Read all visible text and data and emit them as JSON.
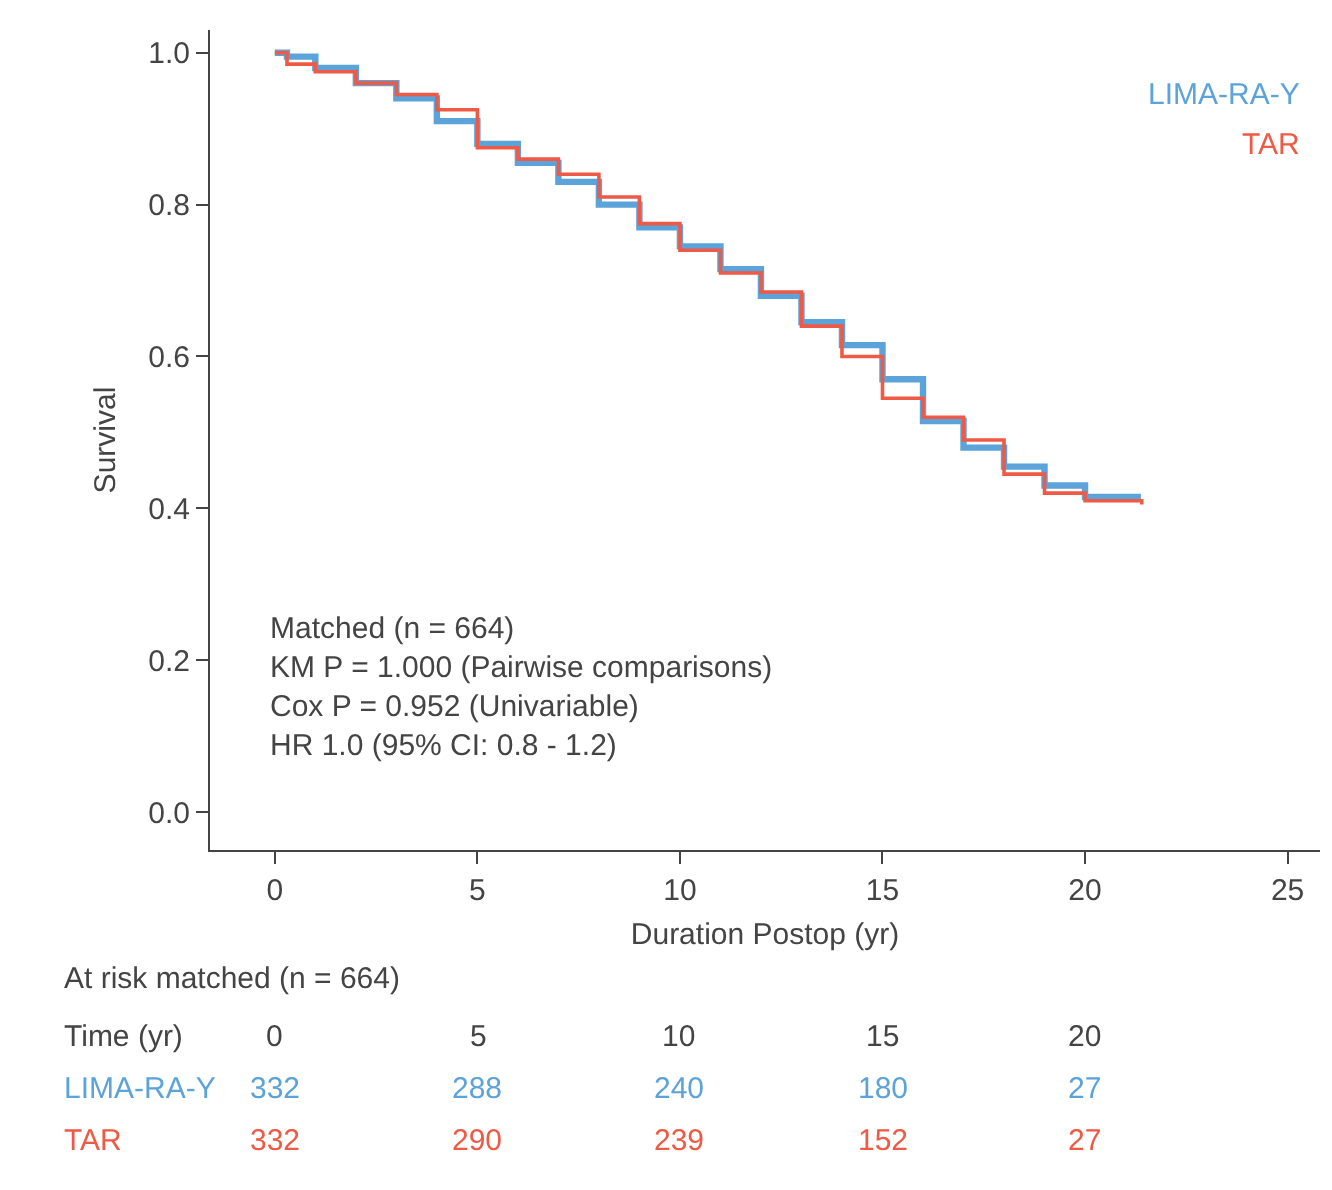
{
  "chart_data": {
    "type": "step",
    "xlabel": "Duration Postop (yr)",
    "ylabel": "Survival",
    "xlim": [
      -1.6,
      25.8
    ],
    "xticks": [
      0,
      5,
      10,
      15,
      20,
      25
    ],
    "ylim": [
      -0.05,
      1.03
    ],
    "yticks": [
      {
        "value": 0,
        "label": "0.0"
      },
      0.2,
      0.4,
      0.6,
      0.8,
      {
        "value": 1,
        "label": "1.0"
      }
    ],
    "grid": false,
    "legend": "top right",
    "series": [
      {
        "name": "LIMA-RA-Y",
        "color": "#5ba3d9",
        "x": [
          0,
          0.3,
          1,
          2,
          3,
          4,
          5,
          6,
          7,
          8,
          9,
          10,
          11,
          12,
          13,
          14,
          15,
          16,
          17,
          18,
          19,
          20,
          21.3
        ],
        "values": [
          1.0,
          0.995,
          0.98,
          0.96,
          0.94,
          0.91,
          0.88,
          0.855,
          0.83,
          0.8,
          0.77,
          0.745,
          0.715,
          0.68,
          0.645,
          0.615,
          0.57,
          0.515,
          0.48,
          0.455,
          0.43,
          0.415,
          0.41
        ]
      },
      {
        "name": "TAR",
        "color": "#ee5a45",
        "x": [
          0,
          0.3,
          1,
          2,
          3,
          4,
          5,
          6,
          7,
          8,
          9,
          10,
          11,
          12,
          13,
          14,
          15,
          16,
          17,
          18,
          19,
          20,
          21.4
        ],
        "values": [
          1.0,
          0.985,
          0.975,
          0.96,
          0.945,
          0.925,
          0.875,
          0.86,
          0.84,
          0.81,
          0.775,
          0.74,
          0.71,
          0.685,
          0.64,
          0.6,
          0.545,
          0.52,
          0.49,
          0.445,
          0.42,
          0.41,
          0.405
        ]
      }
    ],
    "annotations": [
      "Matched (n = 664)",
      "KM P = 1.000 (Pairwise comparisons)",
      "Cox P = 0.952 (Univariable)",
      "HR 1.0 (95% CI: 0.8 - 1.2)",
      "At risk matched (n = 664)",
      "Time (yr)\t0\t5\t10\t15\t20",
      "LIMA-RA-Y\t332\t288\t240\t180\t27",
      "TAR\t332\t290\t239\t152\t27"
    ]
  }
}
